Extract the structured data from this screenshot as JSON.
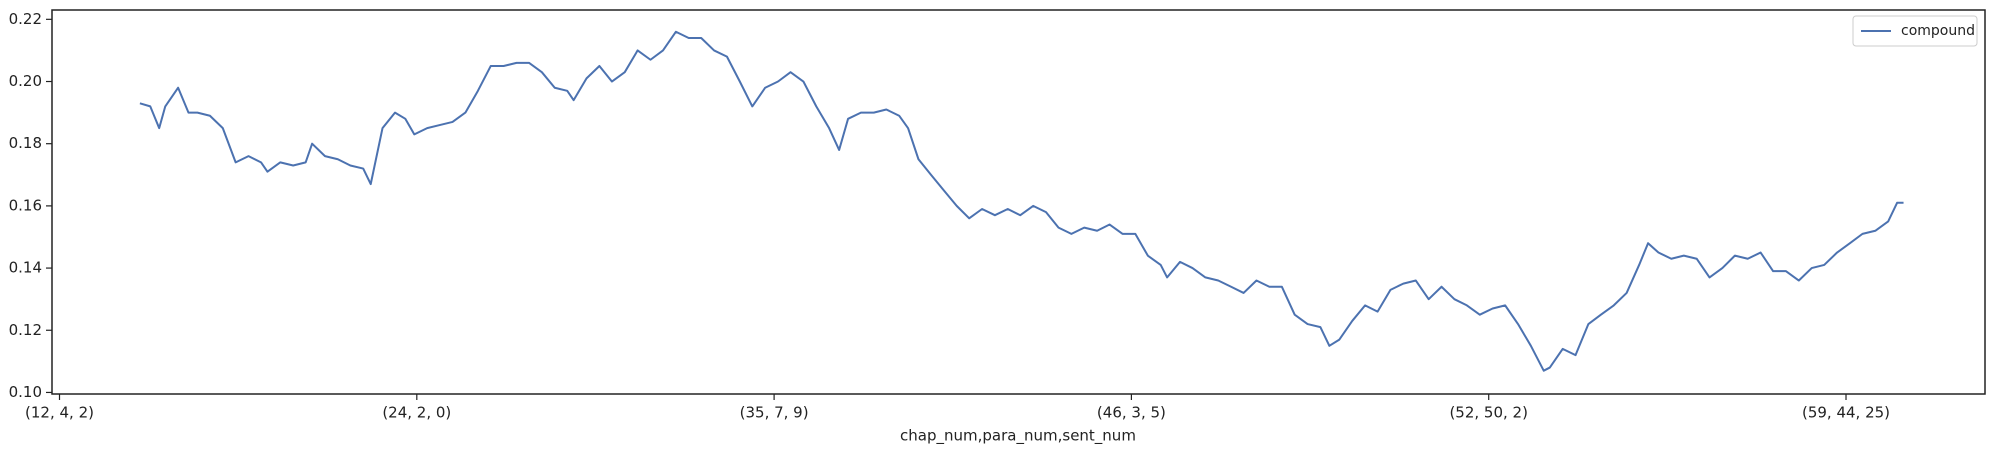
{
  "chart_data": {
    "type": "line",
    "xlabel": "chap_num,para_num,sent_num",
    "x": [
      225,
      254,
      279,
      296,
      332,
      361,
      386,
      421,
      457,
      493,
      529,
      564,
      582,
      618,
      654,
      689,
      707,
      743,
      779,
      814,
      850,
      871,
      904,
      939,
      968,
      993,
      1029,
      1064,
      1100,
      1136,
      1171,
      1207,
      1243,
      1279,
      1314,
      1350,
      1386,
      1421,
      1439,
      1475,
      1511,
      1546,
      1582,
      1618,
      1654,
      1689,
      1725,
      1761,
      1796,
      1832,
      1868,
      1904,
      1939,
      1975,
      2011,
      2046,
      2082,
      2118,
      2154,
      2182,
      2207,
      2243,
      2279,
      2314,
      2350,
      2375,
      2404,
      2439,
      2475,
      2511,
      2546,
      2582,
      2618,
      2654,
      2689,
      2725,
      2761,
      2796,
      2832,
      2868,
      2904,
      2939,
      2975,
      3011,
      3046,
      3082,
      3100,
      3136,
      3171,
      3207,
      3243,
      3279,
      3314,
      3350,
      3386,
      3421,
      3457,
      3493,
      3529,
      3554,
      3582,
      3618,
      3654,
      3689,
      3725,
      3761,
      3796,
      3832,
      3868,
      3904,
      3939,
      3975,
      4011,
      4046,
      4082,
      4118,
      4154,
      4171,
      4207,
      4243,
      4279,
      4314,
      4350,
      4386,
      4421,
      4446,
      4475,
      4511,
      4546,
      4582,
      4618,
      4654,
      4689,
      4725,
      4761,
      4796,
      4832,
      4868,
      4904,
      4939,
      4975,
      5011,
      5046,
      5082,
      5118,
      5143,
      5161
    ],
    "series": [
      {
        "name": "compound",
        "color": "#4c72b0",
        "values": [
          0.193,
          0.192,
          0.185,
          0.192,
          0.198,
          0.19,
          0.19,
          0.189,
          0.185,
          0.174,
          0.176,
          0.174,
          0.171,
          0.174,
          0.173,
          0.174,
          0.18,
          0.176,
          0.175,
          0.173,
          0.172,
          0.167,
          0.185,
          0.19,
          0.188,
          0.183,
          0.185,
          0.186,
          0.187,
          0.19,
          0.197,
          0.205,
          0.205,
          0.206,
          0.206,
          0.203,
          0.198,
          0.197,
          0.194,
          0.201,
          0.205,
          0.2,
          0.203,
          0.21,
          0.207,
          0.21,
          0.216,
          0.214,
          0.214,
          0.21,
          0.208,
          0.2,
          0.192,
          0.198,
          0.2,
          0.203,
          0.2,
          0.192,
          0.185,
          0.178,
          0.188,
          0.19,
          0.19,
          0.191,
          0.189,
          0.185,
          0.175,
          0.17,
          0.165,
          0.16,
          0.156,
          0.159,
          0.157,
          0.159,
          0.157,
          0.16,
          0.158,
          0.153,
          0.151,
          0.153,
          0.152,
          0.154,
          0.151,
          0.151,
          0.144,
          0.141,
          0.137,
          0.142,
          0.14,
          0.137,
          0.136,
          0.134,
          0.132,
          0.136,
          0.134,
          0.134,
          0.125,
          0.122,
          0.121,
          0.115,
          0.117,
          0.123,
          0.128,
          0.126,
          0.133,
          0.135,
          0.136,
          0.13,
          0.134,
          0.13,
          0.128,
          0.125,
          0.127,
          0.128,
          0.122,
          0.115,
          0.107,
          0.108,
          0.114,
          0.112,
          0.122,
          0.125,
          0.128,
          0.132,
          0.141,
          0.148,
          0.145,
          0.143,
          0.144,
          0.143,
          0.137,
          0.14,
          0.144,
          0.143,
          0.145,
          0.139,
          0.139,
          0.136,
          0.14,
          0.141,
          0.145,
          0.148,
          0.151,
          0.152,
          0.155,
          0.161,
          0.161
        ]
      }
    ],
    "xlim": [
      -21,
      5389
    ],
    "ylim": [
      0.0995,
      0.223
    ],
    "xticks": [
      {
        "value": 0,
        "label": "(12, 4, 2)"
      },
      {
        "value": 1000,
        "label": "(24, 2, 0)"
      },
      {
        "value": 2000,
        "label": "(35, 7, 9)"
      },
      {
        "value": 3000,
        "label": "(46, 3, 5)"
      },
      {
        "value": 4000,
        "label": "(52, 50, 2)"
      },
      {
        "value": 5000,
        "label": "(59, 44, 25)"
      }
    ],
    "yticks": [
      {
        "value": 0.1,
        "label": "0.10"
      },
      {
        "value": 0.12,
        "label": "0.12"
      },
      {
        "value": 0.14,
        "label": "0.14"
      },
      {
        "value": 0.16,
        "label": "0.16"
      },
      {
        "value": 0.18,
        "label": "0.18"
      },
      {
        "value": 0.2,
        "label": "0.20"
      },
      {
        "value": 0.22,
        "label": "0.22"
      }
    ],
    "legend": "upper right"
  }
}
